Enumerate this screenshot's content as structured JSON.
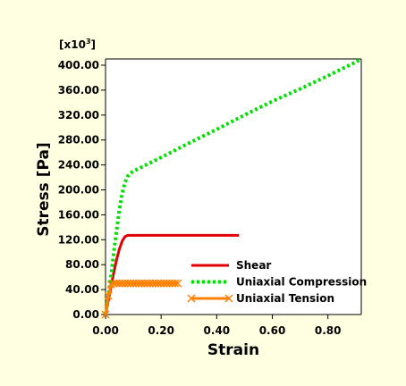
{
  "chart_data": {
    "type": "line",
    "title": "",
    "xlabel": "Strain",
    "ylabel": "Stress [Pa]",
    "y_multiplier": {
      "base": "[x10",
      "exp": "3",
      "close": "]"
    },
    "xlim": [
      0,
      0.92
    ],
    "ylim": [
      0,
      410
    ],
    "x_ticks": [
      0.0,
      0.2,
      0.4,
      0.6,
      0.8
    ],
    "x_tick_labels": [
      "0.00",
      "0.20",
      "0.40",
      "0.60",
      "0.80"
    ],
    "y_ticks": [
      0,
      40,
      80,
      120,
      160,
      200,
      240,
      280,
      320,
      360,
      400
    ],
    "y_tick_labels": [
      "0.00",
      "40.00",
      "80.00",
      "120.00",
      "160.00",
      "200.00",
      "240.00",
      "280.00",
      "320.00",
      "360.00",
      "400.00"
    ],
    "grid": false,
    "legend_position": "lower-right",
    "series": [
      {
        "name": "Shear",
        "color": "#e00000",
        "style": "solid",
        "marker": "none",
        "x": [
          0.0,
          0.01,
          0.02,
          0.03,
          0.04,
          0.05,
          0.06,
          0.07,
          0.08,
          0.2,
          0.35,
          0.48
        ],
        "y": [
          0,
          22,
          45,
          68,
          88,
          105,
          118,
          125,
          127,
          127,
          127,
          127
        ]
      },
      {
        "name": "Uniaxial Compression",
        "color": "#00e000",
        "style": "dotted",
        "marker": "none",
        "x": [
          0.0,
          0.01,
          0.02,
          0.03,
          0.04,
          0.05,
          0.06,
          0.07,
          0.08,
          0.09,
          0.1,
          0.2,
          0.3,
          0.4,
          0.5,
          0.6,
          0.7,
          0.8,
          0.9,
          0.92
        ],
        "y": [
          0,
          30,
          62,
          100,
          135,
          168,
          195,
          212,
          222,
          227,
          230,
          252,
          275,
          297,
          320,
          342,
          362,
          383,
          405,
          410
        ]
      },
      {
        "name": "Uniaxial Tension",
        "color": "#ff8000",
        "style": "solid",
        "marker": "x",
        "x": [
          0.0,
          0.01,
          0.02,
          0.03,
          0.04,
          0.05,
          0.06,
          0.07,
          0.08,
          0.09,
          0.1,
          0.11,
          0.12,
          0.13,
          0.14,
          0.15,
          0.16,
          0.17,
          0.18,
          0.19,
          0.2,
          0.21,
          0.22,
          0.23,
          0.24,
          0.25,
          0.26
        ],
        "y": [
          0,
          30,
          48,
          50,
          50,
          50,
          50,
          50,
          50,
          50,
          50,
          50,
          50,
          50,
          50,
          50,
          50,
          50,
          50,
          50,
          50,
          50,
          50,
          50,
          50,
          50,
          50
        ]
      }
    ]
  }
}
